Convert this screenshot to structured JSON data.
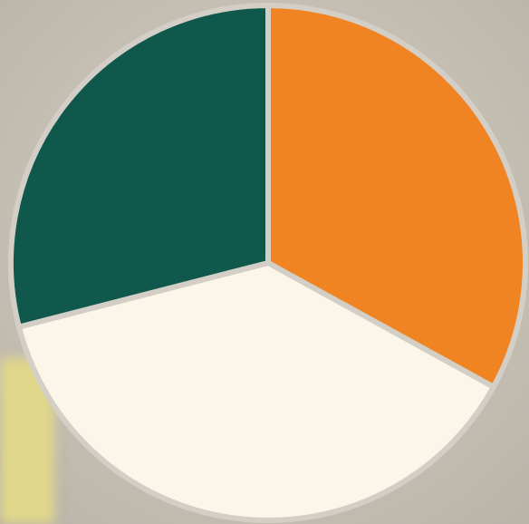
{
  "chart_data": {
    "type": "pie",
    "values": [
      33,
      38,
      29
    ],
    "colors": [
      "#f08322",
      "#fbf6e9",
      "#10584c"
    ],
    "start_angle": 0,
    "direction": "clockwise"
  }
}
